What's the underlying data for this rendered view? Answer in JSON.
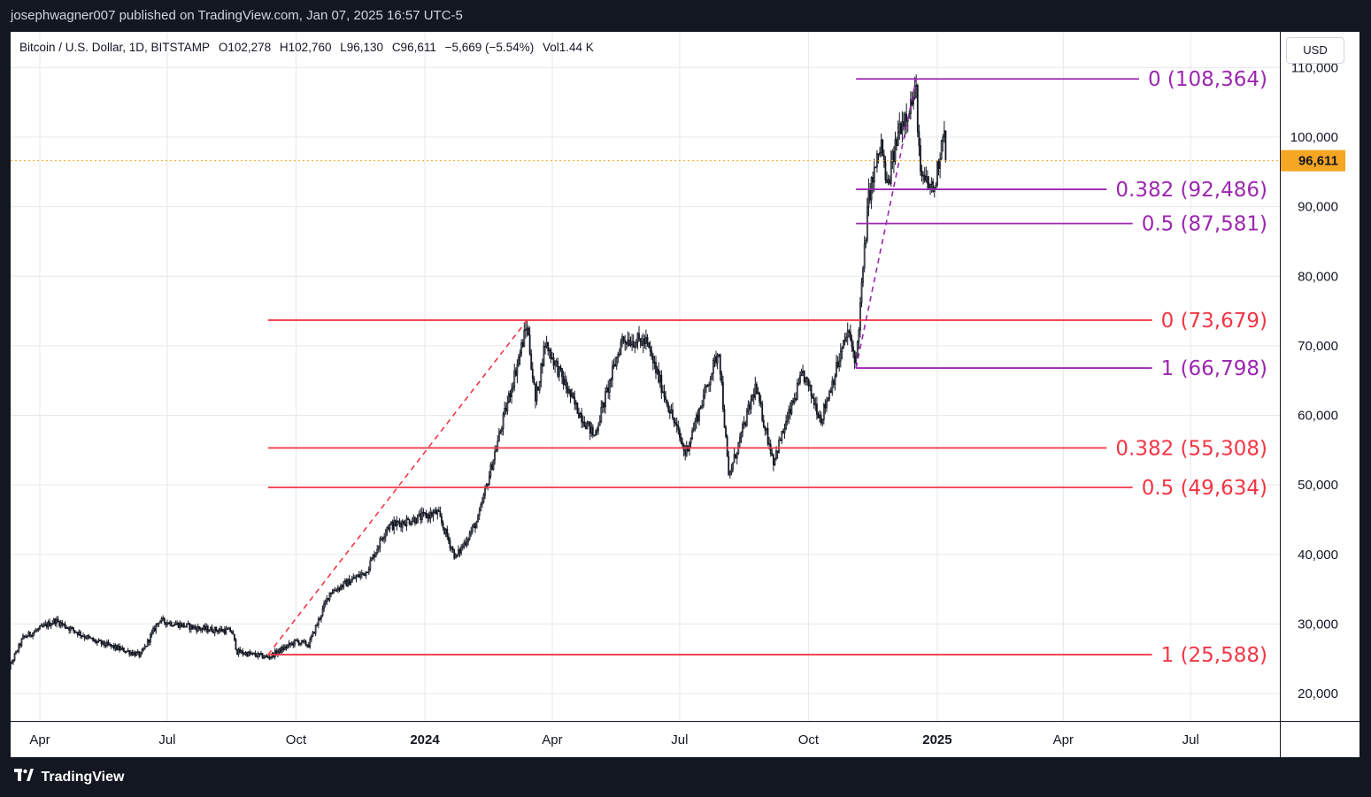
{
  "header": {
    "publisher_line": "josephwagner007 published on TradingView.com, Jan 07, 2025 16:57 UTC-5"
  },
  "legend": {
    "symbol": "Bitcoin / U.S. Dollar, 1D, BITSTAMP",
    "open": "O102,278",
    "high": "H102,760",
    "low": "L96,130",
    "close": "C96,611",
    "change": "−5,669 (−5.54%)",
    "volume": "Vol1.44 K"
  },
  "currency_button": "USD",
  "footer": {
    "brand": "TradingView"
  },
  "colors": {
    "fib_red": "#f23645",
    "fib_purple": "#9c27b0",
    "price_line": "#f5a623",
    "candles": "#131722",
    "background": "#ffffff",
    "chrome": "#131722"
  },
  "chart_data": {
    "type": "candlestick",
    "title": "Bitcoin / U.S. Dollar, 1D, BITSTAMP",
    "y_axis": {
      "ticks": [
        "20,000",
        "30,000",
        "40,000",
        "50,000",
        "60,000",
        "70,000",
        "80,000",
        "90,000",
        "100,000",
        "110,000"
      ],
      "tick_values": [
        20000,
        30000,
        40000,
        50000,
        60000,
        70000,
        80000,
        90000,
        100000,
        110000
      ],
      "range": [
        16500,
        113500
      ],
      "side": "right"
    },
    "x_axis": {
      "ticks": [
        "Apr",
        "Jul",
        "Oct",
        "2024",
        "Apr",
        "Jul",
        "Oct",
        "2025",
        "Apr",
        "Jul"
      ],
      "tick_dates": [
        "2023-04-01",
        "2023-07-01",
        "2023-10-01",
        "2024-01-01",
        "2024-04-01",
        "2024-07-01",
        "2024-10-01",
        "2025-01-01",
        "2025-04-01",
        "2025-07-01"
      ],
      "bold_ticks": [
        "2024",
        "2025"
      ],
      "range": [
        "2023-03-05",
        "2025-09-20"
      ]
    },
    "grid": true,
    "last_price": {
      "label": "96,611",
      "value": 96611
    },
    "price_anchors": [
      [
        "2023-03-05",
        21500
      ],
      [
        "2023-03-20",
        28000
      ],
      [
        "2023-04-12",
        30500
      ],
      [
        "2023-05-10",
        27500
      ],
      [
        "2023-06-12",
        25500
      ],
      [
        "2023-06-25",
        30500
      ],
      [
        "2023-07-25",
        29300
      ],
      [
        "2023-08-16",
        29000
      ],
      [
        "2023-08-20",
        26000
      ],
      [
        "2023-09-11",
        25200
      ],
      [
        "2023-10-01",
        27500
      ],
      [
        "2023-10-10",
        27000
      ],
      [
        "2023-10-25",
        34500
      ],
      [
        "2023-11-20",
        37500
      ],
      [
        "2023-12-05",
        44000
      ],
      [
        "2024-01-10",
        46000
      ],
      [
        "2024-01-23",
        39500
      ],
      [
        "2024-02-08",
        45000
      ],
      [
        "2024-02-28",
        61000
      ],
      [
        "2024-03-14",
        73000
      ],
      [
        "2024-03-20",
        62000
      ],
      [
        "2024-03-27",
        70500
      ],
      [
        "2024-04-17",
        61500
      ],
      [
        "2024-05-01",
        57000
      ],
      [
        "2024-05-21",
        71000
      ],
      [
        "2024-06-07",
        70500
      ],
      [
        "2024-07-05",
        54500
      ],
      [
        "2024-07-29",
        69500
      ],
      [
        "2024-08-05",
        51000
      ],
      [
        "2024-08-24",
        64000
      ],
      [
        "2024-09-06",
        53500
      ],
      [
        "2024-09-27",
        66000
      ],
      [
        "2024-10-10",
        59500
      ],
      [
        "2024-10-29",
        72000
      ],
      [
        "2024-11-04",
        67800
      ],
      [
        "2024-11-13",
        91500
      ],
      [
        "2024-11-22",
        99000
      ],
      [
        "2024-11-26",
        92500
      ],
      [
        "2024-12-05",
        101500
      ],
      [
        "2024-12-17",
        106500
      ],
      [
        "2024-12-20",
        94000
      ],
      [
        "2024-12-30",
        92500
      ],
      [
        "2025-01-06",
        102200
      ],
      [
        "2025-01-07",
        96611
      ]
    ],
    "fib_retracements": [
      {
        "name": "",
        "color": "#f23645",
        "trend_from": [
          "2023-09-11",
          25588
        ],
        "trend_to": [
          "2024-03-14",
          73679
        ],
        "levels": [
          {
            "label": "0 (73,679)",
            "value": 73679
          },
          {
            "label": "0.382 (55,308)",
            "value": 55308
          },
          {
            "label": "0.5 (49,634)",
            "value": 49634
          },
          {
            "label": "1 (25,588)",
            "value": 25588
          }
        ]
      },
      {
        "name": "",
        "color": "#9c27b0",
        "trend_from": [
          "2024-11-04",
          66798
        ],
        "trend_to": [
          "2024-12-17",
          108364
        ],
        "levels": [
          {
            "label": "0 (108,364)",
            "value": 108364
          },
          {
            "label": "0.382 (92,486)",
            "value": 92486
          },
          {
            "label": "0.5 (87,581)",
            "value": 87581
          },
          {
            "label": "1 (66,798)",
            "value": 66798
          }
        ]
      }
    ]
  }
}
